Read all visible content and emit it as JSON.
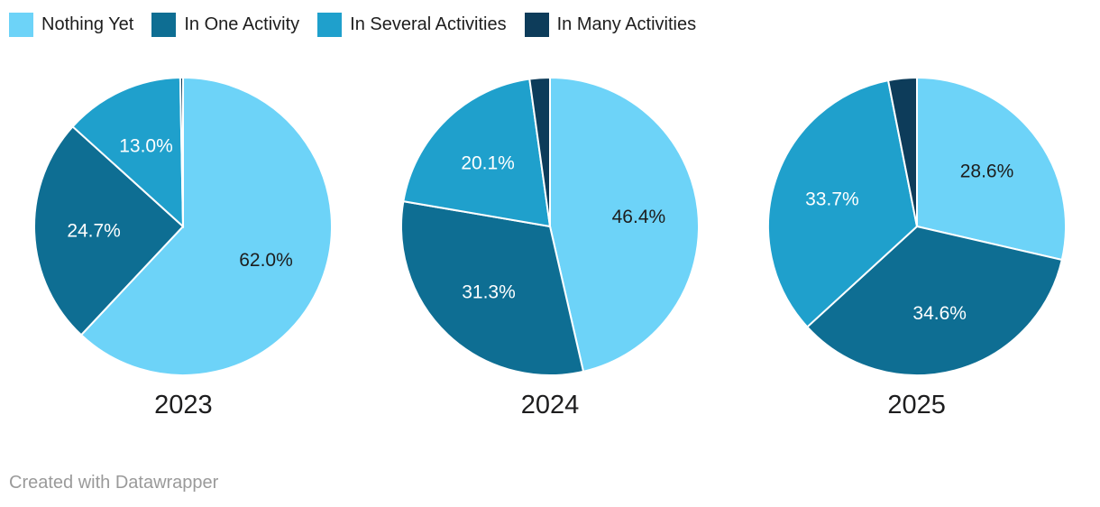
{
  "chart_data": {
    "type": "pie",
    "title": "",
    "legend": {
      "position": "top",
      "entries": [
        {
          "label": "Nothing Yet",
          "color": "#6dd3f8"
        },
        {
          "label": "In One Activity",
          "color": "#0e6e93"
        },
        {
          "label": "In Several Activities",
          "color": "#1fa0cc"
        },
        {
          "label": "In Many Activities",
          "color": "#0d3c5a"
        }
      ]
    },
    "value_suffix": "%",
    "label_decimals": 1,
    "min_value_for_label": 5,
    "slice_label_colors": [
      "#1d1d1d",
      "#ffffff",
      "#ffffff",
      "#ffffff"
    ],
    "slice_divider_color": "#ffffff",
    "pies": [
      {
        "year": "2023",
        "values": [
          62.0,
          24.7,
          13.0,
          0.3
        ]
      },
      {
        "year": "2024",
        "values": [
          46.4,
          31.3,
          20.1,
          2.2
        ]
      },
      {
        "year": "2025",
        "values": [
          28.6,
          34.6,
          33.7,
          3.1
        ]
      }
    ]
  },
  "footer": {
    "credit": "Created with Datawrapper"
  }
}
